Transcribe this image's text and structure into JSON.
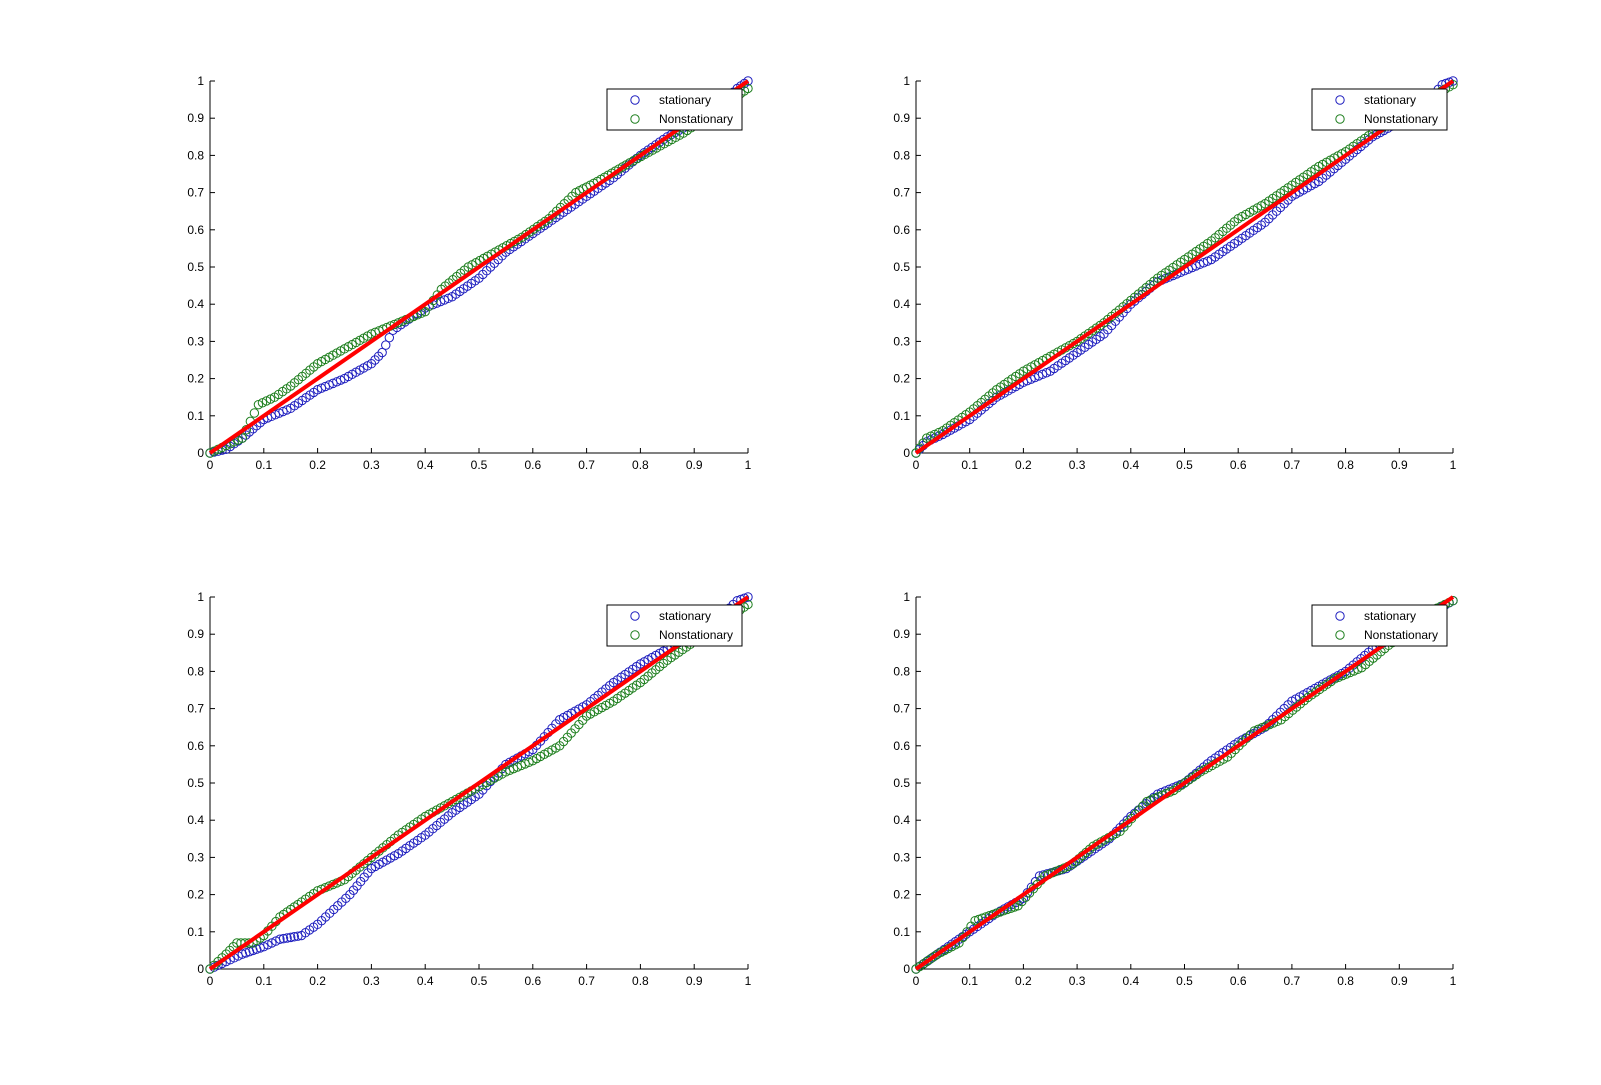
{
  "figure": {
    "background": "#ffffff"
  },
  "colors": {
    "stationary": "#1f1fbf",
    "nonstationary": "#1e7f1e",
    "reference": "#ff0000",
    "axis": "#000000"
  },
  "chart_data": [
    {
      "type": "scatter",
      "title": "",
      "xlabel": "",
      "ylabel": "",
      "xlim": [
        0,
        1
      ],
      "ylim": [
        0,
        1
      ],
      "xticks": [
        "0",
        "0.1",
        "0.2",
        "0.3",
        "0.4",
        "0.5",
        "0.6",
        "0.7",
        "0.8",
        "0.9",
        "1"
      ],
      "yticks": [
        "0",
        "0.1",
        "0.2",
        "0.3",
        "0.4",
        "0.5",
        "0.6",
        "0.7",
        "0.8",
        "0.9",
        "1"
      ],
      "grid": false,
      "legend": {
        "position": "top-right",
        "entries": [
          "stationary",
          "Nonstationary"
        ]
      },
      "reference_line": {
        "x": [
          0,
          1
        ],
        "y": [
          0,
          1
        ]
      },
      "series": [
        {
          "name": "stationary",
          "marker": "open-circle",
          "x": [
            0,
            0.03,
            0.06,
            0.1,
            0.15,
            0.2,
            0.25,
            0.3,
            0.32,
            0.34,
            0.37,
            0.4,
            0.45,
            0.5,
            0.55,
            0.6,
            0.65,
            0.7,
            0.75,
            0.8,
            0.85,
            0.9,
            0.95,
            0.98,
            1.0
          ],
          "y": [
            0,
            0.01,
            0.04,
            0.09,
            0.12,
            0.17,
            0.2,
            0.24,
            0.27,
            0.33,
            0.36,
            0.39,
            0.42,
            0.47,
            0.54,
            0.59,
            0.64,
            0.69,
            0.74,
            0.8,
            0.85,
            0.89,
            0.94,
            0.98,
            1.0
          ]
        },
        {
          "name": "Nonstationary",
          "marker": "open-circle",
          "x": [
            0,
            0.03,
            0.06,
            0.09,
            0.12,
            0.15,
            0.2,
            0.25,
            0.3,
            0.35,
            0.4,
            0.43,
            0.48,
            0.53,
            0.58,
            0.63,
            0.68,
            0.72,
            0.78,
            0.83,
            0.88,
            0.93,
            0.98,
            1.0
          ],
          "y": [
            0,
            0.02,
            0.04,
            0.13,
            0.15,
            0.18,
            0.24,
            0.28,
            0.32,
            0.35,
            0.38,
            0.44,
            0.5,
            0.54,
            0.58,
            0.63,
            0.7,
            0.73,
            0.78,
            0.82,
            0.86,
            0.91,
            0.96,
            0.98
          ]
        }
      ]
    },
    {
      "type": "scatter",
      "title": "",
      "xlabel": "",
      "ylabel": "",
      "xlim": [
        0,
        1
      ],
      "ylim": [
        0,
        1
      ],
      "xticks": [
        "0",
        "0.1",
        "0.2",
        "0.3",
        "0.4",
        "0.5",
        "0.6",
        "0.7",
        "0.8",
        "0.9",
        "1"
      ],
      "yticks": [
        "0",
        "0.1",
        "0.2",
        "0.3",
        "0.4",
        "0.5",
        "0.6",
        "0.7",
        "0.8",
        "0.9",
        "1"
      ],
      "grid": false,
      "legend": {
        "position": "top-right",
        "entries": [
          "stationary",
          "Nonstationary"
        ]
      },
      "reference_line": {
        "x": [
          0,
          1
        ],
        "y": [
          0,
          1
        ]
      },
      "series": [
        {
          "name": "stationary",
          "marker": "open-circle",
          "x": [
            0,
            0.02,
            0.05,
            0.1,
            0.15,
            0.2,
            0.25,
            0.3,
            0.35,
            0.4,
            0.45,
            0.5,
            0.55,
            0.6,
            0.65,
            0.7,
            0.75,
            0.8,
            0.85,
            0.9,
            0.95,
            0.98,
            1.0
          ],
          "y": [
            0,
            0.03,
            0.05,
            0.09,
            0.15,
            0.19,
            0.22,
            0.27,
            0.32,
            0.4,
            0.46,
            0.49,
            0.52,
            0.57,
            0.62,
            0.69,
            0.73,
            0.79,
            0.85,
            0.89,
            0.94,
            0.99,
            1.0
          ]
        },
        {
          "name": "Nonstationary",
          "marker": "open-circle",
          "x": [
            0,
            0.02,
            0.05,
            0.1,
            0.15,
            0.2,
            0.25,
            0.3,
            0.35,
            0.4,
            0.45,
            0.5,
            0.55,
            0.6,
            0.65,
            0.7,
            0.75,
            0.8,
            0.85,
            0.9,
            0.95,
            1.0
          ],
          "y": [
            0,
            0.04,
            0.06,
            0.11,
            0.17,
            0.22,
            0.26,
            0.3,
            0.35,
            0.41,
            0.47,
            0.52,
            0.57,
            0.63,
            0.67,
            0.72,
            0.77,
            0.81,
            0.86,
            0.9,
            0.95,
            0.99
          ]
        }
      ]
    },
    {
      "type": "scatter",
      "title": "",
      "xlabel": "",
      "ylabel": "",
      "xlim": [
        0,
        1
      ],
      "ylim": [
        0,
        1
      ],
      "xticks": [
        "0",
        "0.1",
        "0.2",
        "0.3",
        "0.4",
        "0.5",
        "0.6",
        "0.7",
        "0.8",
        "0.9",
        "1"
      ],
      "yticks": [
        "0",
        "0.1",
        "0.2",
        "0.3",
        "0.4",
        "0.5",
        "0.6",
        "0.7",
        "0.8",
        "0.9",
        "1"
      ],
      "grid": false,
      "legend": {
        "position": "top-right",
        "entries": [
          "stationary",
          "Nonstationary"
        ]
      },
      "reference_line": {
        "x": [
          0,
          1
        ],
        "y": [
          0,
          1
        ]
      },
      "series": [
        {
          "name": "stationary",
          "marker": "open-circle",
          "x": [
            0,
            0.03,
            0.06,
            0.1,
            0.13,
            0.17,
            0.2,
            0.23,
            0.26,
            0.3,
            0.35,
            0.4,
            0.45,
            0.5,
            0.55,
            0.6,
            0.65,
            0.7,
            0.75,
            0.8,
            0.85,
            0.9,
            0.95,
            0.98,
            1.0
          ],
          "y": [
            0,
            0.02,
            0.04,
            0.06,
            0.08,
            0.09,
            0.12,
            0.16,
            0.2,
            0.27,
            0.31,
            0.36,
            0.42,
            0.47,
            0.55,
            0.59,
            0.67,
            0.71,
            0.77,
            0.82,
            0.86,
            0.9,
            0.95,
            0.99,
            1.0
          ]
        },
        {
          "name": "Nonstationary",
          "marker": "open-circle",
          "x": [
            0,
            0.03,
            0.05,
            0.08,
            0.1,
            0.13,
            0.17,
            0.2,
            0.25,
            0.3,
            0.35,
            0.4,
            0.45,
            0.5,
            0.55,
            0.6,
            0.65,
            0.7,
            0.75,
            0.8,
            0.85,
            0.9,
            0.95,
            1.0
          ],
          "y": [
            0,
            0.04,
            0.07,
            0.07,
            0.09,
            0.14,
            0.18,
            0.21,
            0.24,
            0.3,
            0.36,
            0.41,
            0.45,
            0.49,
            0.53,
            0.56,
            0.6,
            0.68,
            0.72,
            0.77,
            0.83,
            0.88,
            0.93,
            0.98
          ]
        }
      ]
    },
    {
      "type": "scatter",
      "title": "",
      "xlabel": "",
      "ylabel": "",
      "xlim": [
        0,
        1
      ],
      "ylim": [
        0,
        1
      ],
      "xticks": [
        "0",
        "0.1",
        "0.2",
        "0.3",
        "0.4",
        "0.5",
        "0.6",
        "0.7",
        "0.8",
        "0.9",
        "1"
      ],
      "yticks": [
        "0",
        "0.1",
        "0.2",
        "0.3",
        "0.4",
        "0.5",
        "0.6",
        "0.7",
        "0.8",
        "0.9",
        "1"
      ],
      "grid": false,
      "legend": {
        "position": "top-right",
        "entries": [
          "stationary",
          "Nonstationary"
        ]
      },
      "reference_line": {
        "x": [
          0,
          1
        ],
        "y": [
          0,
          1
        ]
      },
      "series": [
        {
          "name": "stationary",
          "marker": "open-circle",
          "x": [
            0,
            0.03,
            0.06,
            0.1,
            0.15,
            0.2,
            0.23,
            0.28,
            0.32,
            0.36,
            0.4,
            0.45,
            0.5,
            0.55,
            0.6,
            0.65,
            0.7,
            0.75,
            0.8,
            0.85,
            0.9,
            0.95,
            1.0
          ],
          "y": [
            0,
            0.03,
            0.06,
            0.1,
            0.15,
            0.19,
            0.25,
            0.27,
            0.31,
            0.35,
            0.41,
            0.47,
            0.5,
            0.56,
            0.61,
            0.65,
            0.72,
            0.76,
            0.8,
            0.86,
            0.9,
            0.95,
            0.99
          ]
        },
        {
          "name": "Nonstationary",
          "marker": "open-circle",
          "x": [
            0,
            0.04,
            0.08,
            0.11,
            0.15,
            0.19,
            0.24,
            0.29,
            0.33,
            0.38,
            0.43,
            0.48,
            0.53,
            0.58,
            0.63,
            0.68,
            0.73,
            0.78,
            0.83,
            0.88,
            0.93,
            0.97,
            1.0
          ],
          "y": [
            0,
            0.04,
            0.07,
            0.13,
            0.15,
            0.17,
            0.25,
            0.28,
            0.33,
            0.37,
            0.45,
            0.48,
            0.53,
            0.57,
            0.64,
            0.67,
            0.73,
            0.78,
            0.81,
            0.87,
            0.92,
            0.97,
            0.99
          ]
        }
      ]
    }
  ]
}
